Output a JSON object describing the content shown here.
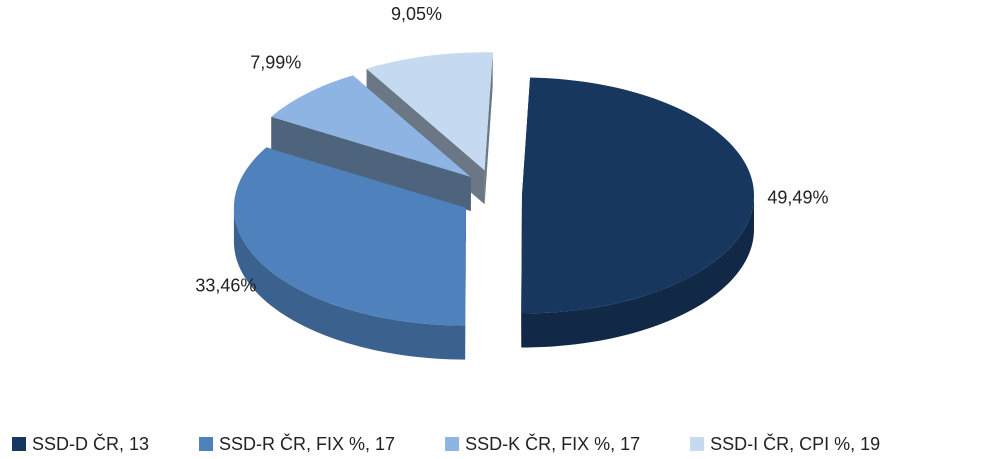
{
  "chart_data": {
    "type": "pie",
    "categories": [
      "SSD-D ČR, 13",
      "SSD-R ČR, FIX %, 17",
      "SSD-K ČR, FIX %, 17",
      "SSD-I ČR, CPI %, 19"
    ],
    "values": [
      49.49,
      33.46,
      7.99,
      9.05
    ],
    "value_labels": [
      "49,49%",
      "33,46%",
      "7,99%",
      "9,05%"
    ],
    "colors": [
      "#17375e",
      "#4f81bd",
      "#8db4e2",
      "#c5d9f1"
    ],
    "legend": "bottom"
  }
}
